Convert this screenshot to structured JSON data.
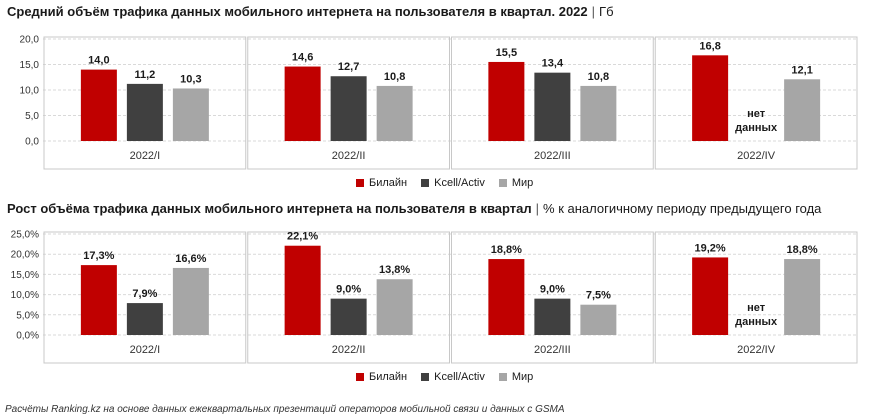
{
  "colors": {
    "beeline": "#c00000",
    "kcell": "#404040",
    "mir": "#a6a6a6",
    "grid": "#d9d9d9",
    "panel_border": "#c8c8c8"
  },
  "titles": [
    {
      "bold": "Средний объём трафика данных мобильного интернета на пользователя в квартал. 2022",
      "separator": "|",
      "unit": "Гб"
    },
    {
      "bold": "Рост объёма трафика данных мобильного интернета на пользователя в квартал",
      "separator": "|",
      "unit": "% к аналогичному периоду предыдущего года"
    }
  ],
  "no_data_label": [
    "нет",
    "данных"
  ],
  "footnote": "Расчёты Ranking.kz на основе данных ежеквартальных презентаций операторов мобильной связи и данных с GSMA",
  "chart_data": [
    {
      "type": "bar",
      "title": "Средний объём трафика данных мобильного интернета на пользователя в квартал. 2022 | Гб",
      "categories": [
        "2022/I",
        "2022/II",
        "2022/III",
        "2022/IV"
      ],
      "series": [
        {
          "name": "Билайн",
          "values": [
            14.0,
            14.6,
            15.5,
            16.8
          ],
          "labels": [
            "14,0",
            "14,6",
            "15,5",
            "16,8"
          ]
        },
        {
          "name": "Kcell/Activ",
          "values": [
            11.2,
            12.7,
            13.4,
            null
          ],
          "labels": [
            "11,2",
            "12,7",
            "13,4",
            ""
          ]
        },
        {
          "name": "Мир",
          "values": [
            10.3,
            10.8,
            10.8,
            12.1
          ],
          "labels": [
            "10,3",
            "10,8",
            "10,8",
            "12,1"
          ]
        }
      ],
      "ylim": [
        0,
        20
      ],
      "yticks": [
        0,
        5,
        10,
        15,
        20
      ],
      "ytick_labels": [
        "0,0",
        "5,0",
        "10,0",
        "15,0",
        "20,0"
      ],
      "grid": true,
      "legend": "bottom-center"
    },
    {
      "type": "bar",
      "title": "Рост объёма трафика данных мобильного интернета на пользователя в квартал | % к аналогичному периоду предыдущего года",
      "categories": [
        "2022/I",
        "2022/II",
        "2022/III",
        "2022/IV"
      ],
      "series": [
        {
          "name": "Билайн",
          "values": [
            17.3,
            22.1,
            18.8,
            19.2
          ],
          "labels": [
            "17,3%",
            "22,1%",
            "18,8%",
            "19,2%"
          ]
        },
        {
          "name": "Kcell/Activ",
          "values": [
            7.9,
            9.0,
            9.0,
            null
          ],
          "labels": [
            "7,9%",
            "9,0%",
            "9,0%",
            ""
          ]
        },
        {
          "name": "Мир",
          "values": [
            16.6,
            13.8,
            7.5,
            18.8
          ],
          "labels": [
            "16,6%",
            "13,8%",
            "7,5%",
            "18,8%"
          ]
        }
      ],
      "ylim": [
        0,
        25
      ],
      "yticks": [
        0,
        5,
        10,
        15,
        20,
        25
      ],
      "ytick_labels": [
        "0,0%",
        "5,0%",
        "10,0%",
        "15,0%",
        "20,0%",
        "25,0%"
      ],
      "grid": true,
      "legend": "bottom-center"
    }
  ]
}
